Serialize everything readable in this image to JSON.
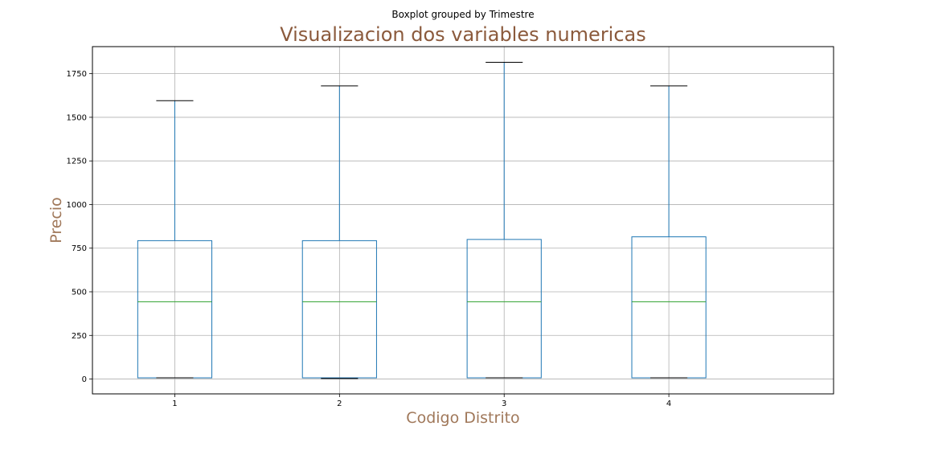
{
  "chart_data": {
    "type": "box",
    "suptitle": "Boxplot grouped by Trimestre",
    "title": "Visualizacion dos variables numericas",
    "xlabel": "Codigo Distrito",
    "ylabel": "Precio",
    "categories": [
      "1",
      "2",
      "3",
      "4"
    ],
    "boxes": [
      {
        "category": "1",
        "whisker_low": 7,
        "q1": 7,
        "median": 443,
        "q3": 793,
        "whisker_high": 1595
      },
      {
        "category": "2",
        "whisker_low": 3,
        "q1": 7,
        "median": 443,
        "q3": 793,
        "whisker_high": 1680
      },
      {
        "category": "3",
        "whisker_low": 7,
        "q1": 7,
        "median": 443,
        "q3": 800,
        "whisker_high": 1815
      },
      {
        "category": "4",
        "whisker_low": 7,
        "q1": 7,
        "median": 443,
        "q3": 815,
        "whisker_high": 1680
      }
    ],
    "yticks": [
      0,
      250,
      500,
      750,
      1000,
      1250,
      1500,
      1750
    ],
    "ylim": [
      -85,
      1905
    ],
    "grid": true,
    "colors": {
      "box": "#1f77b4",
      "median": "#2ca02c",
      "caps": "#000000",
      "grid": "#b0b0b0",
      "title": "#8b5a3c",
      "axis_label": "#a0785a"
    }
  }
}
